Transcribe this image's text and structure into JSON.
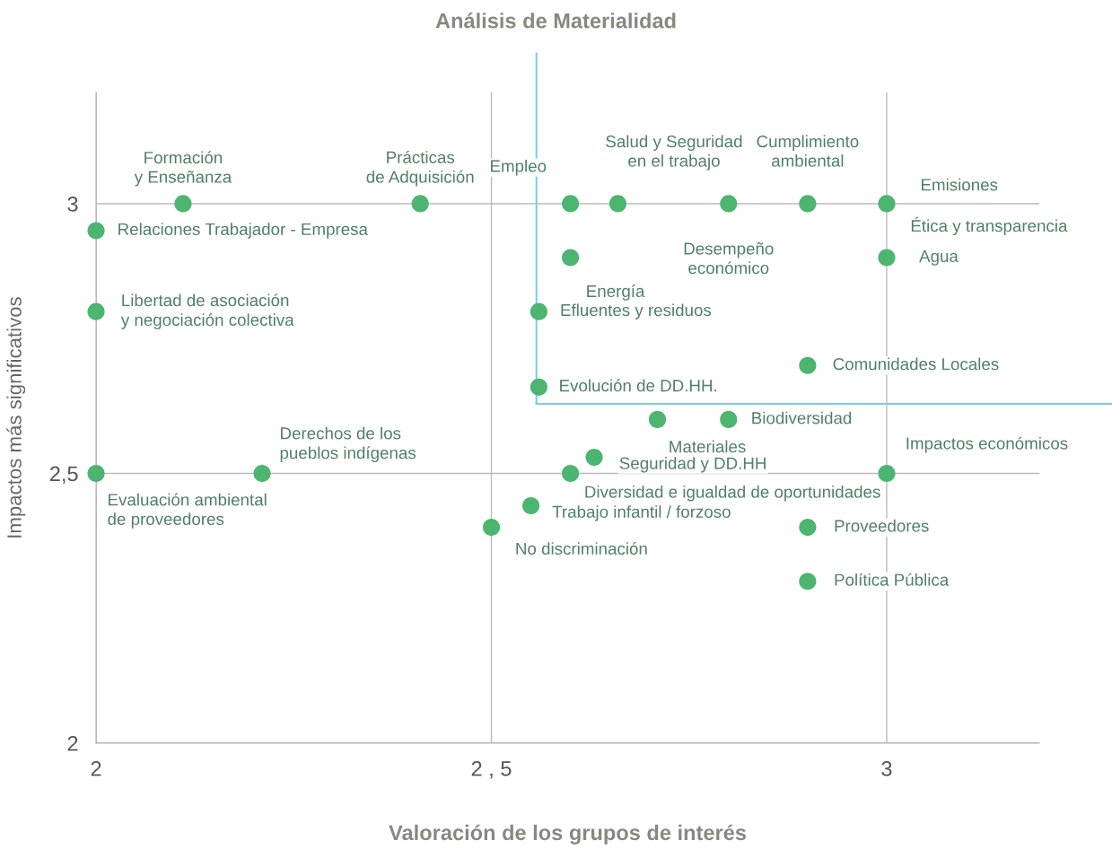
{
  "chart_data": {
    "type": "scatter",
    "title": "Análisis de Materialidad",
    "xlabel": "Valoración de los grupos de interés",
    "ylabel": "Impactos más significativos",
    "xlim": [
      2,
      3.193
    ],
    "ylim": [
      2,
      3.206
    ],
    "xticks": [
      2,
      {
        "value": 2.5,
        "label": "2 , 5"
      },
      3
    ],
    "yticks": [
      2,
      {
        "value": 2.5,
        "label": "2,5"
      },
      3
    ],
    "grid": true,
    "marker": "circle",
    "series": [
      {
        "color": "#4cb56f",
        "x": [
          2.11,
          2.41,
          2,
          2,
          2,
          2.21,
          2.5,
          2.55,
          2.6,
          2.63,
          2.71,
          2.8,
          3,
          2.9,
          2.9,
          2.9,
          2.56,
          2.56,
          2.6,
          2.6,
          2.66,
          2.8,
          2.9,
          3,
          3
        ],
        "values": [
          3,
          3,
          2.95,
          2.8,
          2.5,
          2.5,
          2.4,
          2.44,
          2.5,
          2.53,
          2.6,
          2.6,
          2.5,
          2.4,
          2.3,
          2.7,
          2.66,
          2.8,
          2.9,
          3,
          3,
          3,
          3,
          3,
          2.9
        ]
      }
    ],
    "ref_lines": [
      {
        "axis": "x",
        "value": 2.557,
        "label": null,
        "color": "#7ecbe6"
      },
      {
        "axis": "y",
        "value": 2.629,
        "label": null,
        "color": "#7ecbe6"
      }
    ],
    "annotations": [
      {
        "text": "Formación\ny Enseñanza",
        "x": 2.11,
        "y": 3
      },
      {
        "text": "Prácticas\nde Adquisición",
        "x": 2.41,
        "y": 3
      },
      {
        "text": "Relaciones Trabajador - Empresa",
        "x": 2,
        "y": 2.95
      },
      {
        "text": "Libertad de asociación\ny negociación colectiva",
        "x": 2,
        "y": 2.8
      },
      {
        "text": "Evaluación ambiental\nde proveedores",
        "x": 2,
        "y": 2.5
      },
      {
        "text": "Derechos de los\npueblos indígenas",
        "x": 2.21,
        "y": 2.5
      },
      {
        "text": "No discriminación",
        "x": 2.5,
        "y": 2.4
      },
      {
        "text": "Trabajo infantil / forzoso",
        "x": 2.55,
        "y": 2.44
      },
      {
        "text": "Diversidad e igualdad de oportunidades",
        "x": 2.6,
        "y": 2.5
      },
      {
        "text": "Seguridad y DD.HH",
        "x": 2.63,
        "y": 2.53
      },
      {
        "text": "Materiales",
        "x": 2.71,
        "y": 2.6
      },
      {
        "text": "Biodiversidad",
        "x": 2.8,
        "y": 2.6
      },
      {
        "text": "Impactos económicos",
        "x": 3,
        "y": 2.5
      },
      {
        "text": "Proveedores",
        "x": 2.9,
        "y": 2.4
      },
      {
        "text": "Política Pública",
        "x": 2.9,
        "y": 2.3
      },
      {
        "text": "Comunidades Locales",
        "x": 2.9,
        "y": 2.7
      },
      {
        "text": "Evolución de DD.HH.",
        "x": 2.56,
        "y": 2.66
      },
      {
        "text": "Efluentes y residuos",
        "x": 2.56,
        "y": 2.8
      },
      {
        "text": "Energía",
        "x": 2.6,
        "y": 2.9
      },
      {
        "text": "Empleo",
        "x": 2.6,
        "y": 3
      },
      {
        "text": "Salud y Seguridad\nen el trabajo",
        "x": 2.66,
        "y": 3
      },
      {
        "text": "Desempeño\neconómico",
        "x": 2.8,
        "y": 3
      },
      {
        "text": "Cumplimiento\nambiental",
        "x": 2.9,
        "y": 3
      },
      {
        "text": "Emisiones",
        "x": 3,
        "y": 3
      },
      {
        "text": "Ética y transparencia",
        "x": 3,
        "y": 3
      },
      {
        "text": "Agua",
        "x": 3,
        "y": 2.9
      }
    ]
  }
}
